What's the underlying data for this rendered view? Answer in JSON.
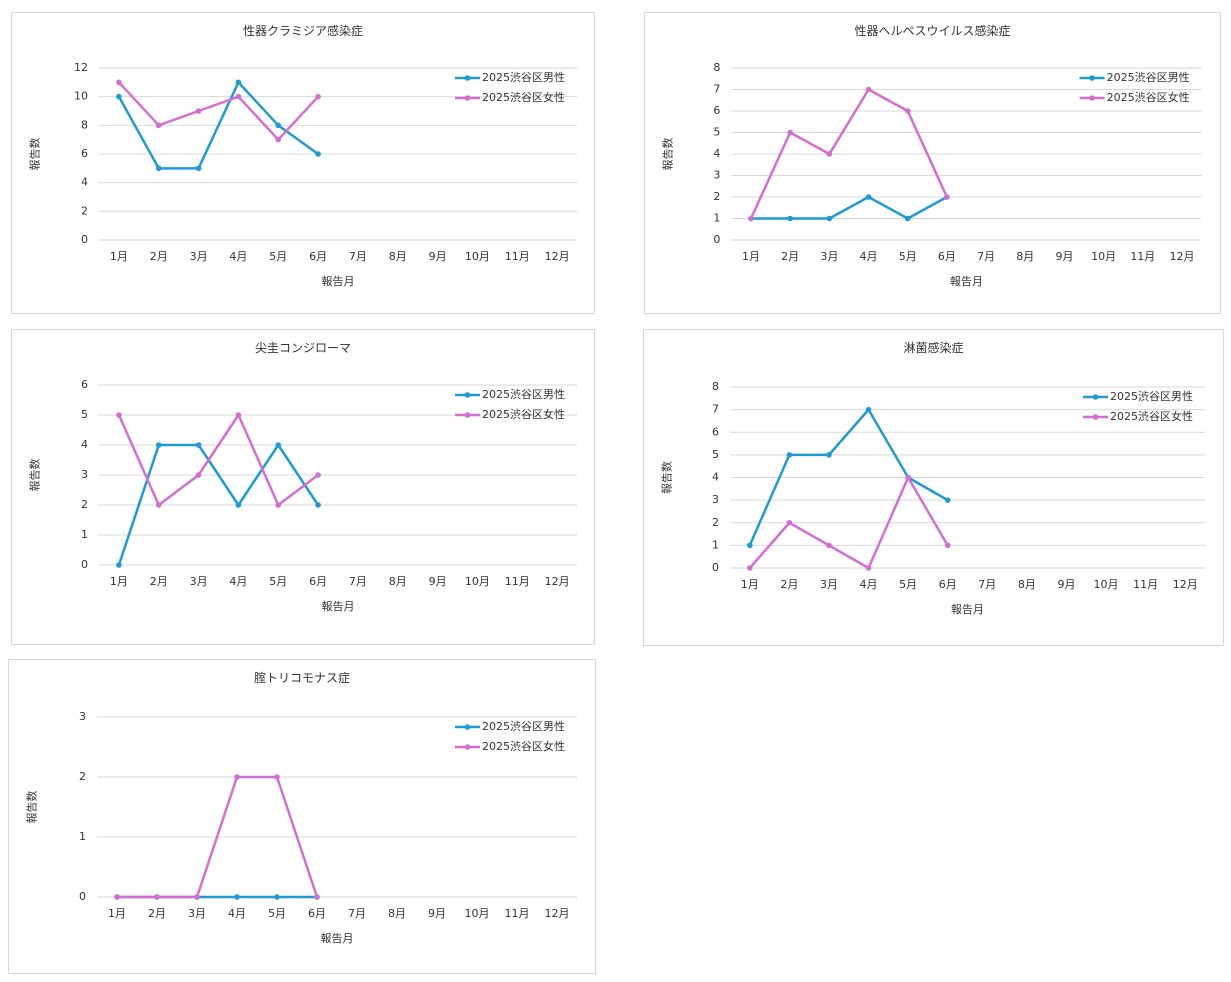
{
  "chart_data": [
    {
      "type": "line",
      "title": "性器クラミジア感染症",
      "ylabel": "報告数",
      "xlabel": "報告月",
      "categories": [
        "1月",
        "2月",
        "3月",
        "4月",
        "5月",
        "6月",
        "7月",
        "8月",
        "9月",
        "10月",
        "11月",
        "12月"
      ],
      "series": [
        {
          "name": "2025渋谷区男性",
          "color": "#1f9bd1",
          "values": [
            10,
            5,
            5,
            11,
            8,
            6,
            null,
            null,
            null,
            null,
            null,
            null
          ]
        },
        {
          "name": "2025渋谷区女性",
          "color": "#d36fd1",
          "values": [
            11,
            8,
            9,
            10,
            7,
            10,
            null,
            null,
            null,
            null,
            null,
            null
          ]
        }
      ],
      "ylim": [
        0,
        12
      ],
      "yticks": [
        0,
        2,
        4,
        6,
        8,
        10,
        12
      ],
      "grid": true,
      "legend": "upper right"
    },
    {
      "type": "line",
      "title": "性器ヘルペスウイルス感染症",
      "ylabel": "報告数",
      "xlabel": "報告月",
      "categories": [
        "1月",
        "2月",
        "3月",
        "4月",
        "5月",
        "6月",
        "7月",
        "8月",
        "9月",
        "10月",
        "11月",
        "12月"
      ],
      "series": [
        {
          "name": "2025渋谷区男性",
          "color": "#1f9bd1",
          "values": [
            1,
            1,
            1,
            2,
            1,
            2,
            null,
            null,
            null,
            null,
            null,
            null
          ]
        },
        {
          "name": "2025渋谷区女性",
          "color": "#d36fd1",
          "values": [
            1,
            5,
            4,
            7,
            6,
            2,
            null,
            null,
            null,
            null,
            null,
            null
          ]
        }
      ],
      "ylim": [
        0,
        8
      ],
      "yticks": [
        0,
        1,
        2,
        3,
        4,
        5,
        6,
        7,
        8
      ],
      "grid": true,
      "legend": "upper right"
    },
    {
      "type": "line",
      "title": "尖圭コンジローマ",
      "ylabel": "報告数",
      "xlabel": "報告月",
      "categories": [
        "1月",
        "2月",
        "3月",
        "4月",
        "5月",
        "6月",
        "7月",
        "8月",
        "9月",
        "10月",
        "11月",
        "12月"
      ],
      "series": [
        {
          "name": "2025渋谷区男性",
          "color": "#1f9bd1",
          "values": [
            0,
            4,
            4,
            2,
            4,
            2,
            null,
            null,
            null,
            null,
            null,
            null
          ]
        },
        {
          "name": "2025渋谷区女性",
          "color": "#d36fd1",
          "values": [
            5,
            2,
            3,
            5,
            2,
            3,
            null,
            null,
            null,
            null,
            null,
            null
          ]
        }
      ],
      "ylim": [
        0,
        6
      ],
      "yticks": [
        0,
        1,
        2,
        3,
        4,
        5,
        6
      ],
      "grid": true,
      "legend": "upper right"
    },
    {
      "type": "line",
      "title": "淋菌感染症",
      "ylabel": "報告数",
      "xlabel": "報告月",
      "categories": [
        "1月",
        "2月",
        "3月",
        "4月",
        "5月",
        "6月",
        "7月",
        "8月",
        "9月",
        "10月",
        "11月",
        "12月"
      ],
      "series": [
        {
          "name": "2025渋谷区男性",
          "color": "#1f9bd1",
          "values": [
            1,
            5,
            5,
            7,
            4,
            3,
            null,
            null,
            null,
            null,
            null,
            null
          ]
        },
        {
          "name": "2025渋谷区女性",
          "color": "#d36fd1",
          "values": [
            0,
            2,
            1,
            0,
            4,
            1,
            null,
            null,
            null,
            null,
            null,
            null
          ]
        }
      ],
      "ylim": [
        0,
        8
      ],
      "yticks": [
        0,
        1,
        2,
        3,
        4,
        5,
        6,
        7,
        8
      ],
      "grid": true,
      "legend": "upper right"
    },
    {
      "type": "line",
      "title": "腟トリコモナス症",
      "ylabel": "報告数",
      "xlabel": "報告月",
      "categories": [
        "1月",
        "2月",
        "3月",
        "4月",
        "5月",
        "6月",
        "7月",
        "8月",
        "9月",
        "10月",
        "11月",
        "12月"
      ],
      "series": [
        {
          "name": "2025渋谷区男性",
          "color": "#1f9bd1",
          "values": [
            0,
            0,
            0,
            0,
            0,
            0,
            null,
            null,
            null,
            null,
            null,
            null
          ]
        },
        {
          "name": "2025渋谷区女性",
          "color": "#d36fd1",
          "values": [
            0,
            0,
            0,
            2,
            2,
            0,
            null,
            null,
            null,
            null,
            null,
            null
          ]
        }
      ],
      "ylim": [
        0,
        3
      ],
      "yticks": [
        0,
        1,
        2,
        3
      ],
      "grid": true,
      "legend": "upper right"
    }
  ]
}
